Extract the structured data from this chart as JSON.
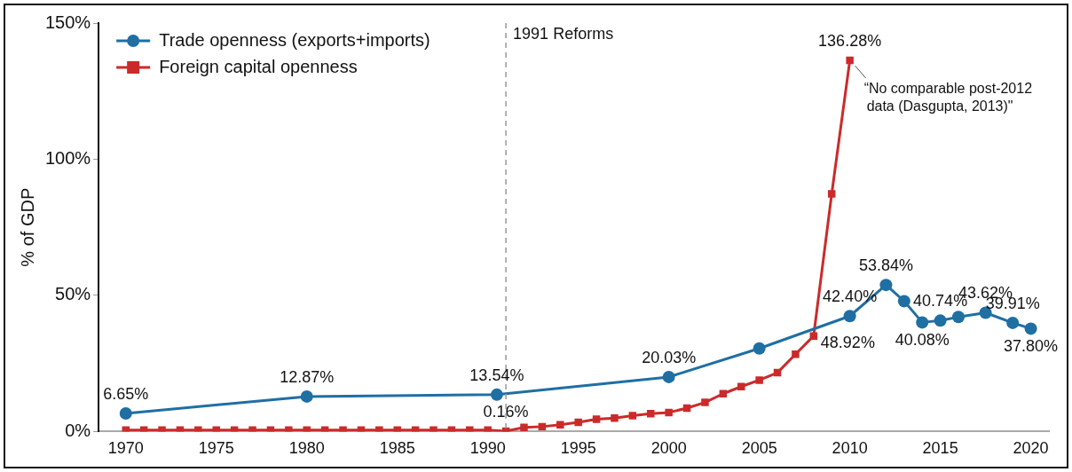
{
  "chart_data": {
    "type": "line",
    "ylabel": "% of GDP",
    "xlim": [
      1968.5,
      2021
    ],
    "xticks": [
      1970,
      1975,
      1980,
      1985,
      1990,
      1995,
      2000,
      2005,
      2010,
      2015,
      2020
    ],
    "ylim": [
      0,
      150
    ],
    "yticks": [
      {
        "value": 0,
        "label": "0%"
      },
      {
        "value": 50,
        "label": "50%"
      },
      {
        "value": 100,
        "label": "100%"
      },
      {
        "value": 150,
        "label": "150%"
      }
    ],
    "grid": false,
    "legend": "top left",
    "line_style": "solid",
    "series": [
      {
        "name": "Trade openness (exports+imports)",
        "color": "#1f6fa3",
        "marker": "circle",
        "x": [
          1970,
          1980,
          1990.5,
          2000,
          2005,
          2010,
          2012,
          2013,
          2014,
          2015,
          2016,
          2017.5,
          2019,
          2020
        ],
        "values": [
          6.65,
          12.87,
          13.54,
          20.03,
          30.5,
          42.4,
          53.84,
          47.9,
          40.08,
          40.74,
          42.1,
          43.62,
          39.91,
          37.8
        ],
        "value_labels": [
          "6.65%",
          "12.87%",
          "13.54%",
          "20.03%",
          null,
          "42.40%",
          "53.84%",
          null,
          "40.08%",
          "40.74%",
          null,
          "43.62%",
          "39.91%",
          "37.80%"
        ]
      },
      {
        "name": "Foreign capital openness",
        "color": "#cc2a2a",
        "marker": "square",
        "x": [
          1970,
          1971,
          1972,
          1973,
          1974,
          1975,
          1976,
          1977,
          1978,
          1979,
          1980,
          1981,
          1982,
          1983,
          1984,
          1985,
          1986,
          1987,
          1988,
          1989,
          1990,
          1991,
          1992,
          1993,
          1994,
          1995,
          1996,
          1997,
          1998,
          1999,
          2000,
          2001,
          2002,
          2003,
          2004,
          2005,
          2006,
          2007,
          2008,
          2009,
          2010
        ],
        "values": [
          0.5,
          0.5,
          0.5,
          0.5,
          0.5,
          0.5,
          0.5,
          0.5,
          0.5,
          0.5,
          0.5,
          0.5,
          0.5,
          0.5,
          0.5,
          0.5,
          0.5,
          0.5,
          0.5,
          0.5,
          0.5,
          0.16,
          1.5,
          1.8,
          2.5,
          3.4,
          4.5,
          4.9,
          5.8,
          6.6,
          7.0,
          8.6,
          10.7,
          13.9,
          16.5,
          18.9,
          21.6,
          28.4,
          35.1,
          87.3,
          136.28
        ],
        "value_labels": [
          null,
          null,
          null,
          null,
          null,
          null,
          null,
          null,
          null,
          null,
          null,
          null,
          null,
          null,
          null,
          null,
          null,
          null,
          null,
          null,
          null,
          "0.16%",
          null,
          null,
          null,
          null,
          null,
          null,
          null,
          null,
          null,
          null,
          null,
          null,
          null,
          null,
          null,
          null,
          null,
          null,
          "136.28%"
        ]
      }
    ],
    "ref_lines": [
      {
        "axis": "x",
        "value": 1991,
        "label": "1991 Reforms",
        "color": "#999999",
        "line_style": "dashed"
      }
    ],
    "annotations": [
      {
        "text": "48.92%",
        "x": 2008,
        "y": 35.1
      },
      {
        "text": "“No comparable post-2012\ndata (Dasgupta, 2013)\"",
        "x": 2010,
        "y": 136.28
      }
    ]
  }
}
